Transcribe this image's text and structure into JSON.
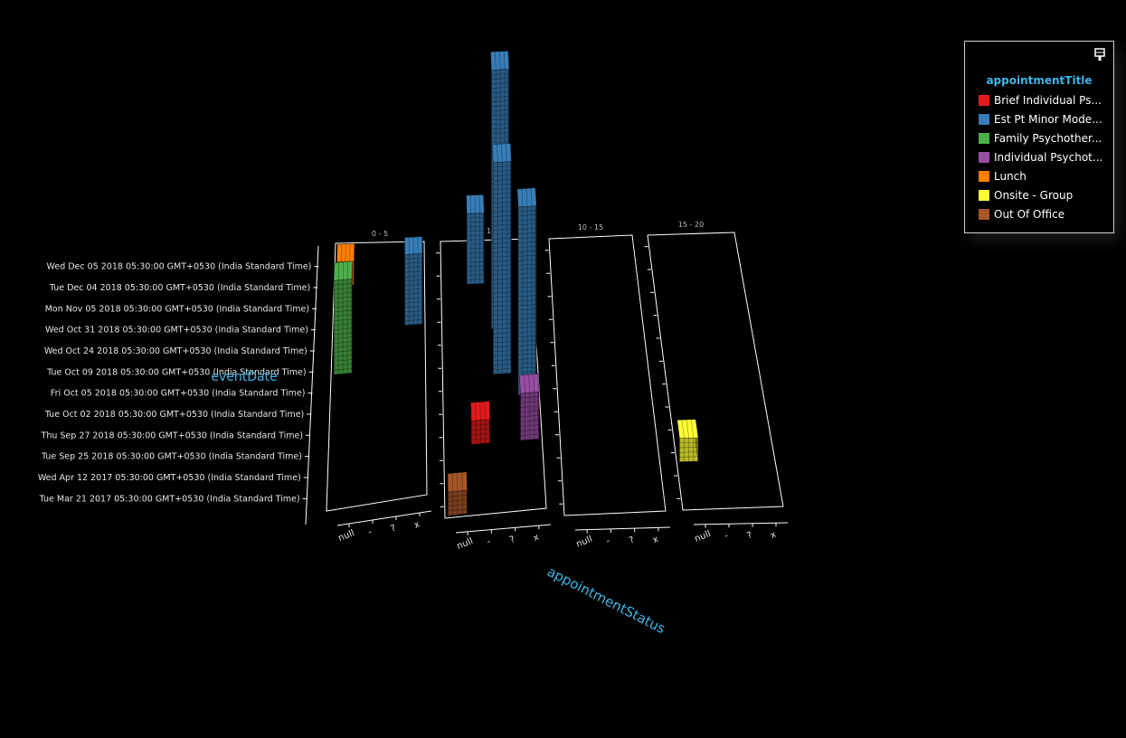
{
  "chart_data": {
    "type": "bar",
    "subtype": "3d-trellis-bar",
    "axis_y_title": "eventDate",
    "axis_x_title": "appointmentStatus",
    "legend_title": "appointmentTitle",
    "legend_position": "top-right",
    "grid": false,
    "dates": [
      "Wed Dec 05 2018 05:30:00 GMT+0530 (India Standard Time)",
      "Tue Dec 04 2018 05:30:00 GMT+0530 (India Standard Time)",
      "Mon Nov 05 2018 05:30:00 GMT+0530 (India Standard Time)",
      "Wed Oct 31 2018 05:30:00 GMT+0530 (India Standard Time)",
      "Wed Oct 24 2018 05:30:00 GMT+0530 (India Standard Time)",
      "Tue Oct 09 2018 05:30:00 GMT+0530 (India Standard Time)",
      "Fri Oct 05 2018 05:30:00 GMT+0530 (India Standard Time)",
      "Tue Oct 02 2018 05:30:00 GMT+0530 (India Standard Time)",
      "Thu Sep 27 2018 05:30:00 GMT+0530 (India Standard Time)",
      "Tue Sep 25 2018 05:30:00 GMT+0530 (India Standard Time)",
      "Wed Apr 12 2017 05:30:00 GMT+0530 (India Standard Time)",
      "Tue Mar 21 2017 05:30:00 GMT+0530 (India Standard Time)"
    ],
    "statuses": [
      "null",
      "-",
      "?",
      "x"
    ],
    "panels": [
      "0 - 5",
      "5 - 10",
      "10 - 15",
      "15 - 20"
    ],
    "series": [
      {
        "name": "Brief Individual Ps...",
        "color": "#e41a1c"
      },
      {
        "name": "Est Pt Minor Mode...",
        "color": "#377eb8"
      },
      {
        "name": "Family Psychother...",
        "color": "#4daf4a"
      },
      {
        "name": "Individual Psychot...",
        "color": "#984ea3"
      },
      {
        "name": "Lunch",
        "color": "#ff7f00"
      },
      {
        "name": "Onsite - Group",
        "color": "#ffff33"
      },
      {
        "name": "Out Of Office",
        "color": "#a65628"
      }
    ],
    "bars": [
      {
        "series": 4,
        "panel": "0 - 5",
        "date": "Tue Dec 04 2018 05:30:00 GMT+0530 (India Standard Time)",
        "status": "null",
        "value": 1
      },
      {
        "series": 1,
        "panel": "0 - 5",
        "date": "Wed Oct 31 2018 05:30:00 GMT+0530 (India Standard Time)",
        "status": "x",
        "value": 3
      },
      {
        "series": 2,
        "panel": "0 - 5",
        "date": "Tue Oct 09 2018 05:30:00 GMT+0530 (India Standard Time)",
        "status": "null",
        "value": 4
      },
      {
        "series": 1,
        "panel": "5 - 10",
        "date": "Tue Dec 04 2018 05:30:00 GMT+0530 (India Standard Time)",
        "status": "-",
        "value": 3
      },
      {
        "series": 1,
        "panel": "5 - 10",
        "date": "Wed Oct 31 2018 05:30:00 GMT+0530 (India Standard Time)",
        "status": "?",
        "value": 11
      },
      {
        "series": 1,
        "panel": "5 - 10",
        "date": "Tue Oct 09 2018 05:30:00 GMT+0530 (India Standard Time)",
        "status": "?",
        "value": 9
      },
      {
        "series": 1,
        "panel": "5 - 10",
        "date": "Fri Oct 05 2018 05:30:00 GMT+0530 (India Standard Time)",
        "status": "x",
        "value": 8
      },
      {
        "series": 0,
        "panel": "5 - 10",
        "date": "Thu Sep 27 2018 05:30:00 GMT+0530 (India Standard Time)",
        "status": "-",
        "value": 1
      },
      {
        "series": 3,
        "panel": "5 - 10",
        "date": "Thu Sep 27 2018 05:30:00 GMT+0530 (India Standard Time)",
        "status": "x",
        "value": 2
      },
      {
        "series": 6,
        "panel": "5 - 10",
        "date": "Tue Mar 21 2017 05:30:00 GMT+0530 (India Standard Time)",
        "status": "null",
        "value": 1
      },
      {
        "series": 5,
        "panel": "15 - 20",
        "date": "Tue Sep 25 2018 05:30:00 GMT+0530 (India Standard Time)",
        "status": "null",
        "value": 1
      }
    ]
  },
  "legend_icon": "paintbrush-icon"
}
